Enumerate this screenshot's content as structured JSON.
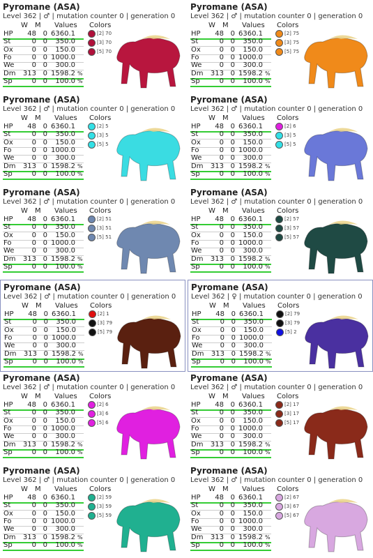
{
  "headers": [
    "W",
    "M",
    "Values",
    "Colors"
  ],
  "stats": [
    [
      "HP",
      "48",
      "0",
      "6360.1"
    ],
    [
      "St",
      "0",
      "0",
      "350.0"
    ],
    [
      "Ox",
      "0",
      "0",
      "150.0"
    ],
    [
      "Fo",
      "0",
      "0",
      "1000.0"
    ],
    [
      "We",
      "0",
      "0",
      "300.0"
    ],
    [
      "Dm",
      "313",
      "0",
      "1598.2",
      "%"
    ],
    [
      "Sp",
      "0",
      "0",
      "100.0",
      "%"
    ]
  ],
  "cards": [
    {
      "title": "Pyromane (ASA)",
      "subtitle": "Level 362 | ♂ | mutation counter 0 | generation 0",
      "image_color": "#b8163e",
      "colors": [
        {
          "label": "[2] 70",
          "color": "#b0103a"
        },
        {
          "label": "[3] 70",
          "color": "#b0103a"
        },
        {
          "label": "[5] 70",
          "color": "#b0103a"
        }
      ]
    },
    {
      "title": "Pyromane (ASA)",
      "subtitle": "Level 362 | ♂ | mutation counter 0 | generation 0",
      "image_color": "#f08a1a",
      "colors": [
        {
          "label": "[2] 75",
          "color": "#f08a1a"
        },
        {
          "label": "[3] 75",
          "color": "#f08a1a"
        },
        {
          "label": "[5] 75",
          "color": "#f08a1a"
        }
      ]
    },
    {
      "title": "Pyromane (ASA)",
      "subtitle": "Level 362 | ♂ | mutation counter 0 | generation 0",
      "image_color": "#3adce2",
      "colors": [
        {
          "label": "[2] 5",
          "color": "#33e0e6"
        },
        {
          "label": "[3] 5",
          "color": "#33e0e6"
        },
        {
          "label": "[5] 5",
          "color": "#33e0e6"
        }
      ]
    },
    {
      "title": "Pyromane (ASA)",
      "subtitle": "Level 362 | ♂ | mutation counter 0 | generation 0",
      "image_color": "#6a78d8",
      "colors": [
        {
          "label": "[2] 6",
          "color": "#e020e0"
        },
        {
          "label": "[3] 5",
          "color": "#33e0e6"
        },
        {
          "label": "[5] 5",
          "color": "#33e0e6"
        }
      ]
    },
    {
      "title": "Pyromane (ASA)",
      "subtitle": "Level 362 | ♂ | mutation counter 0 | generation 0",
      "image_color": "#6f88b0",
      "colors": [
        {
          "label": "[2] 51",
          "color": "#6f88b0"
        },
        {
          "label": "[3] 51",
          "color": "#6f88b0"
        },
        {
          "label": "[5] 51",
          "color": "#6f88b0"
        }
      ]
    },
    {
      "title": "Pyromane (ASA)",
      "subtitle": "Level 362 | ♂ | mutation counter 0 | generation 0",
      "image_color": "#1f4a44",
      "colors": [
        {
          "label": "[2] 57",
          "color": "#1f4a44"
        },
        {
          "label": "[3] 57",
          "color": "#1f4a44"
        },
        {
          "label": "[5] 57",
          "color": "#1f4a44"
        }
      ]
    },
    {
      "title": "Pyromane (ASA)",
      "subtitle": "Level 362 | ♂ | mutation counter 0 | generation 0",
      "image_color": "#5a2010",
      "colors": [
        {
          "label": "[2] 1",
          "color": "#e01010"
        },
        {
          "label": "[3] 79",
          "color": "#111111"
        },
        {
          "label": "[5] 79",
          "color": "#111111"
        }
      ]
    },
    {
      "title": "Pyromane (ASA)",
      "subtitle": "Level 362 | ♀ | mutation counter 0 | generation 0",
      "image_color": "#4a30a0",
      "colors": [
        {
          "label": "[2] 79",
          "color": "#111111"
        },
        {
          "label": "[3] 79",
          "color": "#111111"
        },
        {
          "label": "[5] 2",
          "color": "#1010e0"
        }
      ]
    },
    {
      "title": "Pyromane (ASA)",
      "subtitle": "Level 362 | ♂ | mutation counter 0 | generation 0",
      "image_color": "#e020e0",
      "colors": [
        {
          "label": "[2] 6",
          "color": "#e020e0"
        },
        {
          "label": "[3] 6",
          "color": "#e020e0"
        },
        {
          "label": "[5] 6",
          "color": "#e020e0"
        }
      ]
    },
    {
      "title": "Pyromane (ASA)",
      "subtitle": "Level 362 | ♂ | mutation counter 0 | generation 0",
      "image_color": "#8a2a1a",
      "colors": [
        {
          "label": "[2] 17",
          "color": "#8a2a1a"
        },
        {
          "label": "[3] 17",
          "color": "#8a2a1a"
        },
        {
          "label": "[5] 17",
          "color": "#8a2a1a"
        }
      ]
    },
    {
      "title": "Pyromane (ASA)",
      "subtitle": "Level 362 | ♂ | mutation counter 0 | generation 0",
      "image_color": "#20b090",
      "colors": [
        {
          "label": "[2] 59",
          "color": "#20b090"
        },
        {
          "label": "[3] 59",
          "color": "#20b090"
        },
        {
          "label": "[5] 59",
          "color": "#20b090"
        }
      ]
    },
    {
      "title": "Pyromane (ASA)",
      "subtitle": "Level 362 | ♂ | mutation counter 0 | generation 0",
      "image_color": "#d8a8e0",
      "colors": [
        {
          "label": "[2] 67",
          "color": "#d8a8e0"
        },
        {
          "label": "[3] 67",
          "color": "#d8a8e0"
        },
        {
          "label": "[5] 67",
          "color": "#d8a8e0"
        }
      ]
    }
  ]
}
